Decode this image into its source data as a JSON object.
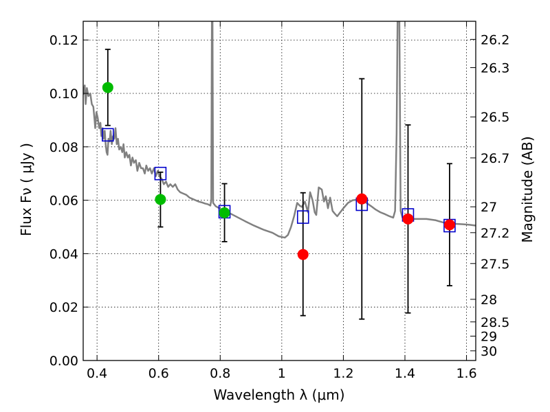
{
  "chart_data": {
    "type": "scatter",
    "xlabel": "Wavelength  λ (μm)",
    "ylabel": "Flux  Fν  ( μJy )",
    "y2label": "Magnitude (AB)",
    "xlim": [
      0.355,
      1.63
    ],
    "ylim": [
      0.0,
      0.127
    ],
    "grid": true,
    "x_ticks": [
      0.4,
      0.6,
      0.8,
      1.0,
      1.2,
      1.4,
      1.6
    ],
    "x_tick_labels": [
      "0.4",
      "0.6",
      "0.8",
      "1",
      "1.2",
      "1.4",
      "1.6"
    ],
    "y_ticks": [
      0.0,
      0.02,
      0.04,
      0.06,
      0.08,
      0.1,
      0.12
    ],
    "y_tick_labels": [
      "0.00",
      "0.02",
      "0.04",
      "0.06",
      "0.08",
      "0.10",
      "0.12"
    ],
    "mag_ticks": [
      26.2,
      26.3,
      26.5,
      26.7,
      27,
      27.2,
      27.5,
      28,
      28.5,
      29,
      30
    ],
    "mag_tick_labels": [
      "26.2",
      "26.3",
      "26.5",
      "26.7",
      "27",
      "27.2",
      "27.5",
      "28",
      "28.5",
      "29",
      "30"
    ],
    "colors": {
      "green": "#00bb00",
      "red": "#ff0000",
      "model": "#0000cc",
      "sed": "#808080",
      "errbar": "#000000"
    },
    "series": [
      {
        "marker": "circle",
        "color": "green",
        "points": [
          {
            "x": 0.435,
            "y": 0.1022,
            "err_lo": 0.088,
            "err_hi": 0.1165
          },
          {
            "x": 0.606,
            "y": 0.0603,
            "err_lo": 0.05,
            "err_hi": 0.0705
          },
          {
            "x": 0.814,
            "y": 0.0553,
            "err_lo": 0.0445,
            "err_hi": 0.0662
          }
        ]
      },
      {
        "marker": "circle",
        "color": "red",
        "points": [
          {
            "x": 1.069,
            "y": 0.0397,
            "err_lo": 0.0168,
            "err_hi": 0.0628
          },
          {
            "x": 1.26,
            "y": 0.0605,
            "err_lo": 0.0155,
            "err_hi": 0.1055
          },
          {
            "x": 1.41,
            "y": 0.053,
            "err_lo": 0.0178,
            "err_hi": 0.0882
          },
          {
            "x": 1.545,
            "y": 0.0508,
            "err_lo": 0.028,
            "err_hi": 0.0737
          }
        ]
      },
      {
        "marker": "square-open",
        "color": "model",
        "points": [
          {
            "x": 0.435,
            "y": 0.0845
          },
          {
            "x": 0.606,
            "y": 0.07
          },
          {
            "x": 0.814,
            "y": 0.0557
          },
          {
            "x": 1.069,
            "y": 0.0537
          },
          {
            "x": 1.26,
            "y": 0.0585
          },
          {
            "x": 1.41,
            "y": 0.0545
          },
          {
            "x": 1.545,
            "y": 0.0505
          }
        ]
      },
      {
        "marker": "line",
        "color": "sed",
        "points": [
          [
            0.355,
            0.0995
          ],
          [
            0.36,
            0.103
          ],
          [
            0.363,
            0.096
          ],
          [
            0.367,
            0.102
          ],
          [
            0.372,
            0.099
          ],
          [
            0.378,
            0.1
          ],
          [
            0.383,
            0.096
          ],
          [
            0.388,
            0.095
          ],
          [
            0.392,
            0.09
          ],
          [
            0.394,
            0.087
          ],
          [
            0.398,
            0.093
          ],
          [
            0.402,
            0.091
          ],
          [
            0.407,
            0.087
          ],
          [
            0.411,
            0.089
          ],
          [
            0.414,
            0.084
          ],
          [
            0.418,
            0.087
          ],
          [
            0.421,
            0.083
          ],
          [
            0.425,
            0.086
          ],
          [
            0.428,
            0.081
          ],
          [
            0.431,
            0.078
          ],
          [
            0.434,
            0.077
          ],
          [
            0.437,
            0.083
          ],
          [
            0.441,
            0.082
          ],
          [
            0.444,
            0.086
          ],
          [
            0.448,
            0.081
          ],
          [
            0.452,
            0.084
          ],
          [
            0.456,
            0.083
          ],
          [
            0.46,
            0.087
          ],
          [
            0.464,
            0.081
          ],
          [
            0.468,
            0.083
          ],
          [
            0.472,
            0.079
          ],
          [
            0.477,
            0.08
          ],
          [
            0.482,
            0.078
          ],
          [
            0.486,
            0.081
          ],
          [
            0.49,
            0.076
          ],
          [
            0.495,
            0.078
          ],
          [
            0.5,
            0.076
          ],
          [
            0.505,
            0.077
          ],
          [
            0.51,
            0.073
          ],
          [
            0.515,
            0.076
          ],
          [
            0.52,
            0.074
          ],
          [
            0.526,
            0.075
          ],
          [
            0.531,
            0.071
          ],
          [
            0.537,
            0.074
          ],
          [
            0.543,
            0.072
          ],
          [
            0.549,
            0.072
          ],
          [
            0.555,
            0.07
          ],
          [
            0.56,
            0.073
          ],
          [
            0.566,
            0.071
          ],
          [
            0.572,
            0.072
          ],
          [
            0.578,
            0.07
          ],
          [
            0.585,
            0.072
          ],
          [
            0.591,
            0.069
          ],
          [
            0.597,
            0.071
          ],
          [
            0.603,
            0.069
          ],
          [
            0.61,
            0.068
          ],
          [
            0.617,
            0.066
          ],
          [
            0.624,
            0.067
          ],
          [
            0.631,
            0.065
          ],
          [
            0.638,
            0.066
          ],
          [
            0.646,
            0.065
          ],
          [
            0.654,
            0.066
          ],
          [
            0.662,
            0.064
          ],
          [
            0.67,
            0.063
          ],
          [
            0.68,
            0.0625
          ],
          [
            0.69,
            0.062
          ],
          [
            0.7,
            0.061
          ],
          [
            0.71,
            0.0605
          ],
          [
            0.72,
            0.06
          ],
          [
            0.73,
            0.0595
          ],
          [
            0.74,
            0.0592
          ],
          [
            0.75,
            0.0588
          ],
          [
            0.76,
            0.0585
          ],
          [
            0.768,
            0.058
          ],
          [
            0.771,
            0.06
          ],
          [
            0.773,
            0.127
          ],
          [
            0.775,
            0.127
          ],
          [
            0.777,
            0.059
          ],
          [
            0.785,
            0.0578
          ],
          [
            0.8,
            0.0568
          ],
          [
            0.82,
            0.0558
          ],
          [
            0.85,
            0.054
          ],
          [
            0.88,
            0.0522
          ],
          [
            0.91,
            0.0505
          ],
          [
            0.94,
            0.049
          ],
          [
            0.97,
            0.0478
          ],
          [
            0.99,
            0.0465
          ],
          [
            1.01,
            0.046
          ],
          [
            1.02,
            0.047
          ],
          [
            1.03,
            0.05
          ],
          [
            1.04,
            0.054
          ],
          [
            1.05,
            0.059
          ],
          [
            1.058,
            0.058
          ],
          [
            1.065,
            0.0575
          ],
          [
            1.075,
            0.0595
          ],
          [
            1.085,
            0.0555
          ],
          [
            1.092,
            0.063
          ],
          [
            1.1,
            0.06
          ],
          [
            1.107,
            0.0555
          ],
          [
            1.112,
            0.0545
          ],
          [
            1.12,
            0.0648
          ],
          [
            1.13,
            0.064
          ],
          [
            1.137,
            0.0595
          ],
          [
            1.143,
            0.0615
          ],
          [
            1.15,
            0.057
          ],
          [
            1.157,
            0.061
          ],
          [
            1.165,
            0.056
          ],
          [
            1.172,
            0.055
          ],
          [
            1.18,
            0.054
          ],
          [
            1.19,
            0.0555
          ],
          [
            1.2,
            0.057
          ],
          [
            1.215,
            0.059
          ],
          [
            1.23,
            0.06
          ],
          [
            1.245,
            0.0602
          ],
          [
            1.26,
            0.06
          ],
          [
            1.275,
            0.059
          ],
          [
            1.29,
            0.0578
          ],
          [
            1.305,
            0.0565
          ],
          [
            1.32,
            0.0555
          ],
          [
            1.335,
            0.0548
          ],
          [
            1.35,
            0.054
          ],
          [
            1.362,
            0.0535
          ],
          [
            1.368,
            0.056
          ],
          [
            1.373,
            0.085
          ],
          [
            1.376,
            0.127
          ],
          [
            1.382,
            0.127
          ],
          [
            1.386,
            0.056
          ],
          [
            1.392,
            0.0535
          ],
          [
            1.41,
            0.053
          ],
          [
            1.44,
            0.053
          ],
          [
            1.47,
            0.053
          ],
          [
            1.5,
            0.0525
          ],
          [
            1.53,
            0.0515
          ],
          [
            1.56,
            0.0512
          ],
          [
            1.59,
            0.051
          ],
          [
            1.61,
            0.0508
          ],
          [
            1.63,
            0.0505
          ]
        ]
      }
    ]
  }
}
